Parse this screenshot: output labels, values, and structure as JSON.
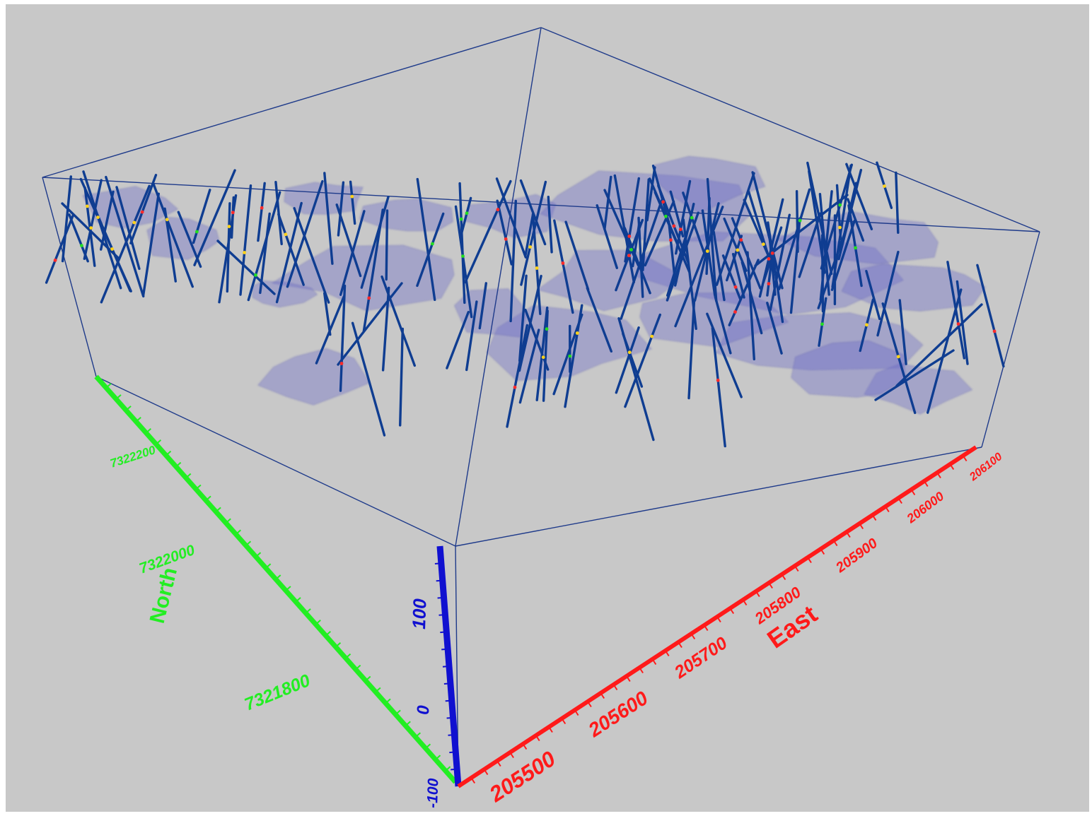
{
  "scene": {
    "background_color": "#c8c8c8",
    "box_color": "#1e3a8a",
    "drillhole_color": "#0f3d91",
    "orebody_color": "#6a6ac8",
    "sample_colors": [
      "#ff2a2a",
      "#22dd22",
      "#ffd21a"
    ]
  },
  "axes": {
    "east": {
      "title": "East",
      "color": "#ff1a1a",
      "ticks": [
        "205500",
        "205600",
        "205700",
        "205800",
        "205900",
        "206000",
        "206100"
      ]
    },
    "north": {
      "title": "North",
      "color": "#22ee22",
      "ticks": [
        "7321800",
        "7322000",
        "7322200"
      ]
    },
    "elevation": {
      "color": "#1010d0",
      "ticks": [
        "-100",
        "0",
        "100"
      ]
    }
  }
}
